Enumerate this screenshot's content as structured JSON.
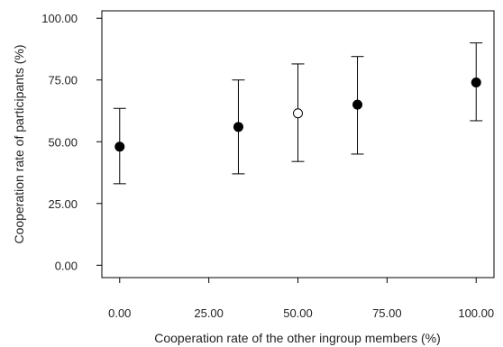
{
  "chart_data": {
    "type": "scatter",
    "xlabel": "Cooperation rate of the other ingroup members (%)",
    "ylabel": "Cooperation rate of participants (%)",
    "xlim": [
      -5,
      105
    ],
    "ylim": [
      -5,
      103
    ],
    "x_ticks": [
      "0.00",
      "25.00",
      "50.00",
      "75.00",
      "100.00"
    ],
    "x_tick_values": [
      0,
      25,
      50,
      75,
      100
    ],
    "y_ticks": [
      "0.00",
      "25.00",
      "50.00",
      "75.00",
      "100.00"
    ],
    "y_tick_values": [
      0,
      25,
      50,
      75,
      100
    ],
    "grid": false,
    "legend": "none",
    "points": [
      {
        "x": 0,
        "y": 48,
        "lower": 33,
        "upper": 63.5,
        "marker": "filled"
      },
      {
        "x": 33.3,
        "y": 56,
        "lower": 37,
        "upper": 75,
        "marker": "filled"
      },
      {
        "x": 50,
        "y": 61.5,
        "lower": 42,
        "upper": 81.5,
        "marker": "open"
      },
      {
        "x": 66.7,
        "y": 65,
        "lower": 45,
        "upper": 84.5,
        "marker": "filled"
      },
      {
        "x": 100,
        "y": 74,
        "lower": 58.5,
        "upper": 90,
        "marker": "filled"
      }
    ],
    "colors": {
      "marker": "#000000",
      "axis": "#000000",
      "errorbar": "#000000"
    }
  }
}
